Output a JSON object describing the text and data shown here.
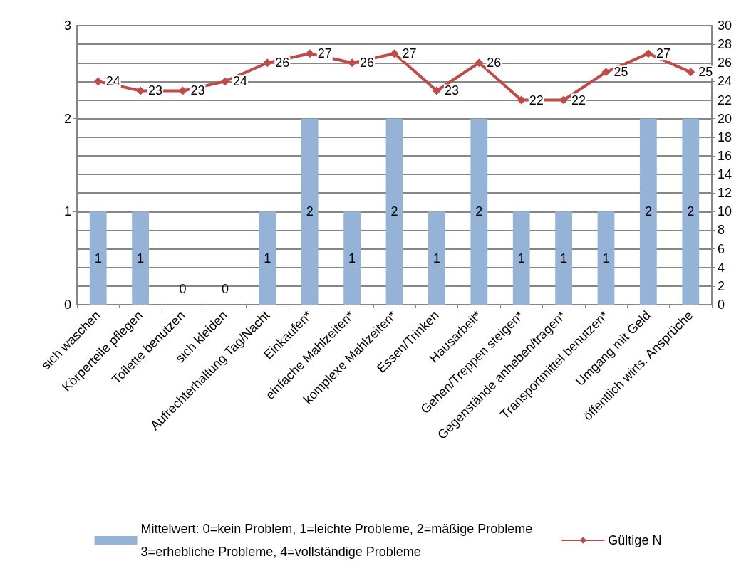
{
  "chart_data": {
    "type": "bar",
    "categories": [
      "sich waschen",
      "Körperteile pflegen",
      "Toilette benutzen",
      "sich kleiden",
      "Aufrechterhaltung Tag/Nacht",
      "Einkaufen*",
      "einfache Mahlzeiten*",
      "komplexe Mahlzeiten*",
      "Essen/Trinken",
      "Hausarbeit*",
      "Gehen/Treppen steigen*",
      "Gegenstände anheben/tragen*",
      "Transportmittel benutzen*",
      "Umgang mit Geld",
      "öffentlich wirts. Ansprüche"
    ],
    "series": [
      {
        "name": "Mittelwert: 0=kein Problem, 1=leichte Probleme, 2=mäßige Probleme\n3=erhebliche Probleme, 4=vollständige Probleme",
        "color": "#95b3d7",
        "values": [
          1,
          1,
          0,
          0,
          1,
          2,
          1,
          2,
          1,
          2,
          1,
          1,
          1,
          2,
          2
        ]
      },
      {
        "name": "Gültige N",
        "type": "line",
        "axis": "y2",
        "color": "#be4b48",
        "marker": "diamond",
        "values": [
          24,
          23,
          23,
          24,
          26,
          27,
          26,
          27,
          23,
          26,
          22,
          22,
          25,
          27,
          25
        ]
      }
    ],
    "ylim": [
      0,
      3
    ],
    "yticks": [
      0,
      1,
      2,
      3
    ],
    "y2lim": [
      0,
      30
    ],
    "y2ticks": [
      0,
      2,
      4,
      6,
      8,
      10,
      12,
      14,
      16,
      18,
      20,
      22,
      24,
      26,
      28,
      30
    ],
    "grid": "y",
    "legend": "bottom",
    "data_labels": true
  }
}
